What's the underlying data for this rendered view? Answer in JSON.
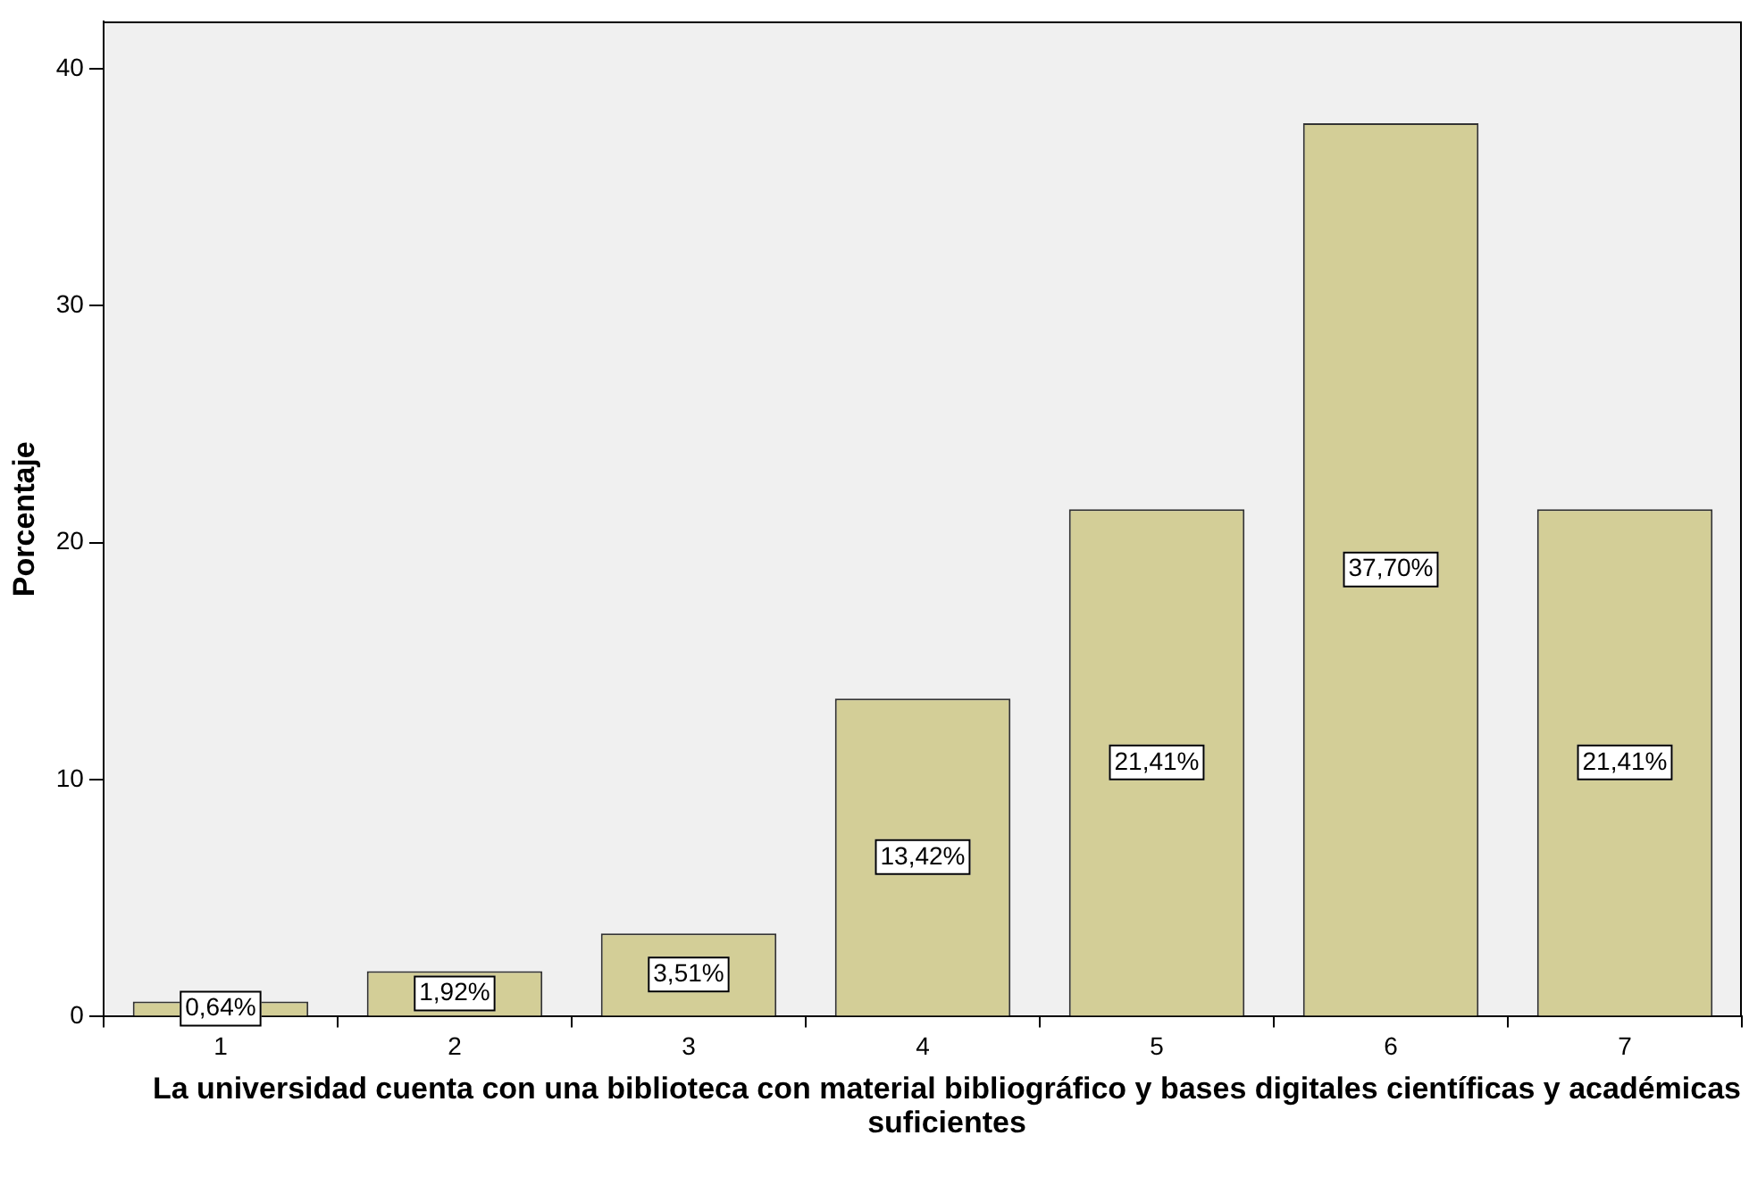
{
  "chart_data": {
    "type": "bar",
    "xlabel": "La universidad cuenta con una biblioteca con material bibliográfico y bases digitales científicas y académicas suficientes",
    "ylabel": "Porcentaje",
    "categories": [
      "1",
      "2",
      "3",
      "4",
      "5",
      "6",
      "7"
    ],
    "values": [
      0.64,
      1.92,
      3.51,
      13.42,
      21.41,
      37.7,
      21.41
    ],
    "value_labels": [
      "0,64%",
      "1,92%",
      "3,51%",
      "13,42%",
      "21,41%",
      "37,70%",
      "21,41%"
    ],
    "color": "#d3ce97",
    "ylim": [
      0,
      42
    ],
    "yticks": [
      0,
      10,
      20,
      30,
      40
    ]
  }
}
